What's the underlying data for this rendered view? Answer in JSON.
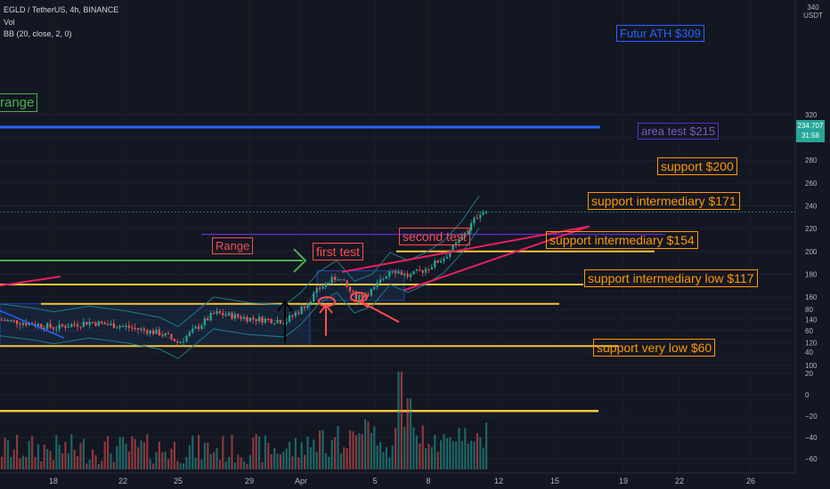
{
  "header": {
    "symbol_line": "EGLD / TetherUS, 4h, BINANCE",
    "volume_label": "Vol",
    "bb_label": "BB (20, close, 2, 0)"
  },
  "price_axis": {
    "unit_top": "340",
    "unit": "USDT",
    "ticks": [
      "320",
      "300",
      "280",
      "260",
      "240",
      "220",
      "200",
      "180",
      "160",
      "140",
      "120",
      "100",
      "80",
      "60",
      "40",
      "20",
      "0",
      "−20",
      "−40",
      "−60"
    ],
    "current_price": "234.707",
    "countdown": "31:58"
  },
  "time_axis": {
    "ticks": [
      "18",
      "22",
      "25",
      "29",
      "Apr",
      "5",
      "8",
      "12",
      "15",
      "19",
      "22",
      "26"
    ]
  },
  "annotations": {
    "ath": "Futur ATH $309",
    "range_left": "range",
    "area_test": "area test $215",
    "support_200": "support $200",
    "support_171": "support intermediary $171",
    "support_154": "support intermediary $154",
    "support_117": "support  intermediary low $117",
    "support_60": "support very low $60",
    "range_box": "Range",
    "first_test": "first test",
    "second_test": "second test"
  },
  "colors": {
    "background": "#131722",
    "up": "#26a69a",
    "down": "#ef5350",
    "support": "#f5c542",
    "ath_line": "#2962ff",
    "area_line": "#5b2fc9",
    "wedge": "#e91e63",
    "test_red": "#ff4d4d",
    "range_green": "#4caf50",
    "orange_box": "#ff9800",
    "bb": "#1f7a8c"
  },
  "chart_data": {
    "type": "candlestick",
    "symbol": "EGLD / TetherUS",
    "interval": "4h",
    "exchange": "BINANCE",
    "y_range": [
      -60,
      340
    ],
    "current_price": 234.707,
    "horizontal_levels": [
      {
        "label": "Futur ATH $309",
        "value": 309
      },
      {
        "label": "area test $215",
        "value": 215
      },
      {
        "label": "support $200",
        "value": 200
      },
      {
        "label": "support intermediary $171",
        "value": 171
      },
      {
        "label": "support intermediary $154",
        "value": 154
      },
      {
        "label": "support  intermediary low $117",
        "value": 117
      },
      {
        "label": "support very low $60",
        "value": 60
      }
    ],
    "price_path": [
      {
        "date": "Mar 15",
        "price": 140
      },
      {
        "date": "Mar 17",
        "price": 136
      },
      {
        "date": "Mar 18",
        "price": 133
      },
      {
        "date": "Mar 20",
        "price": 138
      },
      {
        "date": "Mar 22",
        "price": 134
      },
      {
        "date": "Mar 24",
        "price": 128
      },
      {
        "date": "Mar 25",
        "price": 120
      },
      {
        "date": "Mar 27",
        "price": 146
      },
      {
        "date": "Mar 29",
        "price": 141
      },
      {
        "date": "Mar 31",
        "price": 139
      },
      {
        "date": "Apr 1",
        "price": 150
      },
      {
        "date": "Apr 2",
        "price": 168
      },
      {
        "date": "Apr 3",
        "price": 178
      },
      {
        "date": "Apr 4",
        "price": 160
      },
      {
        "date": "Apr 5",
        "price": 166
      },
      {
        "date": "Apr 6",
        "price": 185
      },
      {
        "date": "Apr 7",
        "price": 178
      },
      {
        "date": "Apr 8",
        "price": 185
      },
      {
        "date": "Apr 9",
        "price": 195
      },
      {
        "date": "Apr 10",
        "price": 212
      },
      {
        "date": "Apr 11",
        "price": 234.7
      }
    ]
  }
}
